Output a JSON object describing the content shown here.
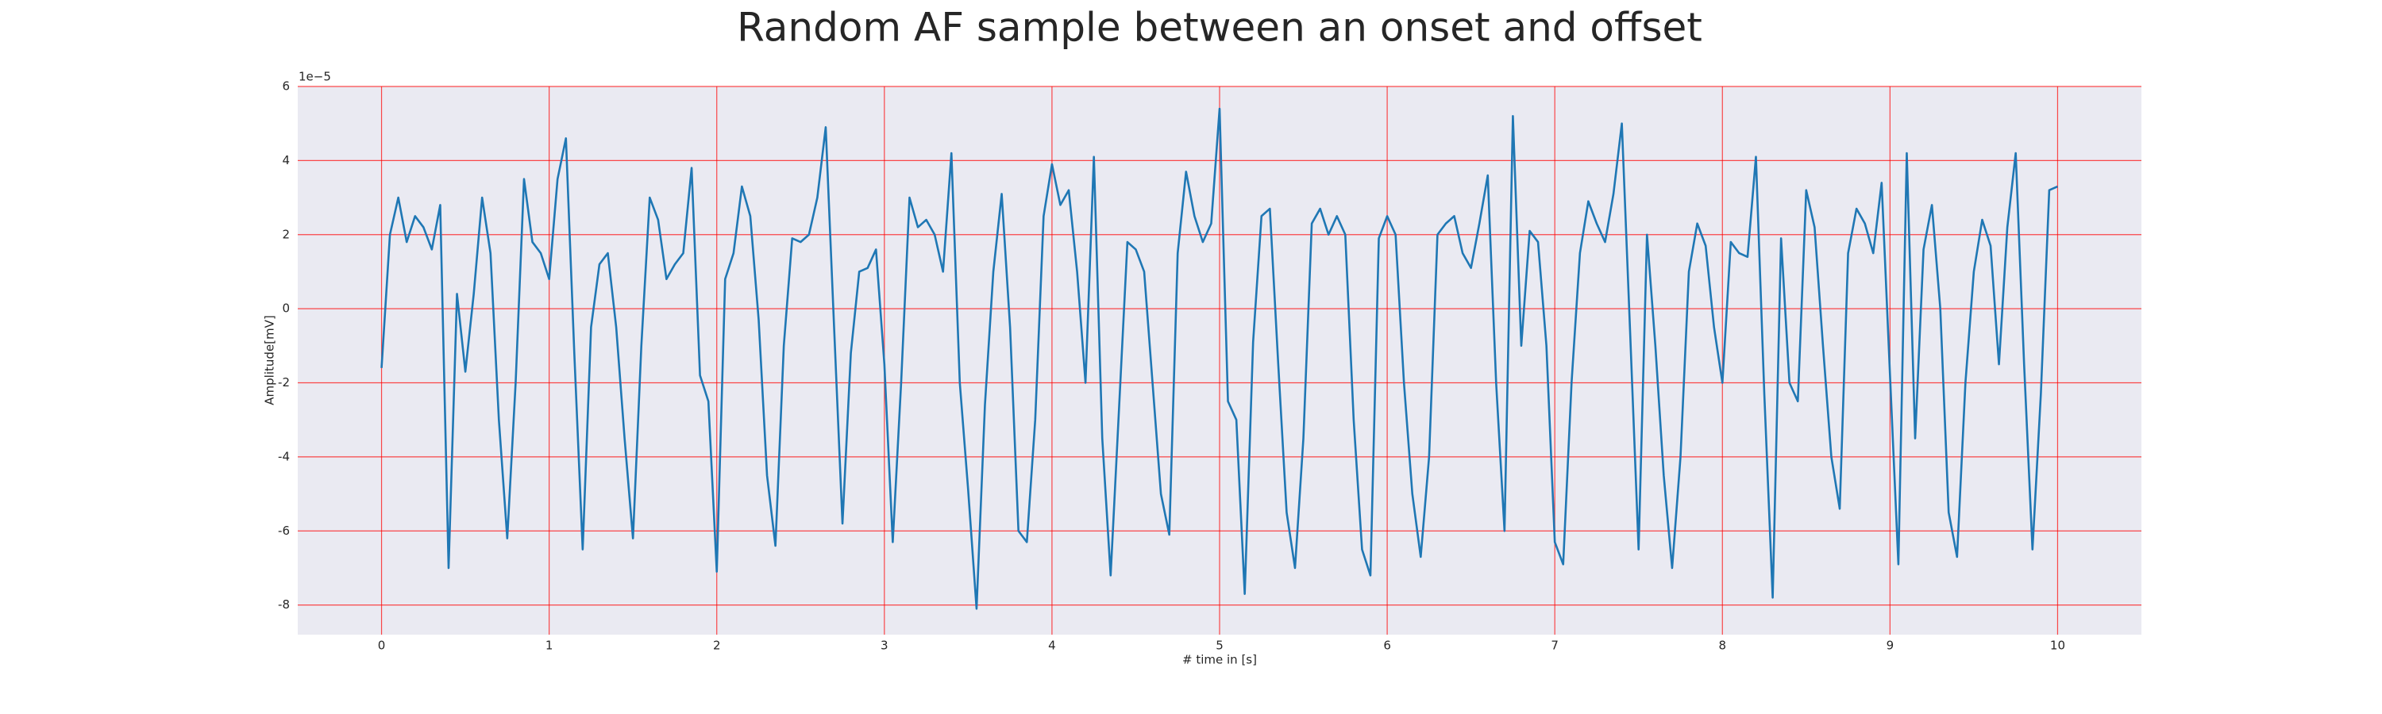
{
  "chart_data": {
    "type": "line",
    "title": "Random AF sample between an onset and offset",
    "xlabel": "# time in [s]",
    "ylabel": "Amplitude[mV]",
    "y_offset_label": "1e−5",
    "xlim": [
      -0.5,
      10.5
    ],
    "ylim": [
      -8.8,
      6
    ],
    "xticks": [
      0,
      1,
      2,
      3,
      4,
      5,
      6,
      7,
      8,
      9,
      10
    ],
    "yticks": [
      -8,
      -6,
      -4,
      -2,
      0,
      2,
      4,
      6
    ],
    "grid": true,
    "grid_color": "#ff0000",
    "background": "#eaeaf2",
    "x": [
      0,
      0.05,
      0.1,
      0.15,
      0.2,
      0.25,
      0.3,
      0.35,
      0.4,
      0.45,
      0.5,
      0.55,
      0.6,
      0.65,
      0.7,
      0.75,
      0.8,
      0.85,
      0.9,
      0.95,
      1,
      1.05,
      1.1,
      1.15,
      1.2,
      1.25,
      1.3,
      1.35,
      1.4,
      1.45,
      1.5,
      1.55,
      1.6,
      1.65,
      1.7,
      1.75,
      1.8,
      1.85,
      1.9,
      1.95,
      2,
      2.05,
      2.1,
      2.15,
      2.2,
      2.25,
      2.3,
      2.35,
      2.4,
      2.45,
      2.5,
      2.55,
      2.6,
      2.65,
      2.7,
      2.75,
      2.8,
      2.85,
      2.9,
      2.95,
      3,
      3.05,
      3.1,
      3.15,
      3.2,
      3.25,
      3.3,
      3.35,
      3.4,
      3.45,
      3.5,
      3.55,
      3.6,
      3.65,
      3.7,
      3.75,
      3.8,
      3.85,
      3.9,
      3.95,
      4,
      4.05,
      4.1,
      4.15,
      4.2,
      4.25,
      4.3,
      4.35,
      4.4,
      4.45,
      4.5,
      4.55,
      4.6,
      4.65,
      4.7,
      4.75,
      4.8,
      4.85,
      4.9,
      4.95,
      5,
      5.05,
      5.1,
      5.15,
      5.2,
      5.25,
      5.3,
      5.35,
      5.4,
      5.45,
      5.5,
      5.55,
      5.6,
      5.65,
      5.7,
      5.75,
      5.8,
      5.85,
      5.9,
      5.95,
      6,
      6.05,
      6.1,
      6.15,
      6.2,
      6.25,
      6.3,
      6.35,
      6.4,
      6.45,
      6.5,
      6.55,
      6.6,
      6.65,
      6.7,
      6.75,
      6.8,
      6.85,
      6.9,
      6.95,
      7,
      7.05,
      7.1,
      7.15,
      7.2,
      7.25,
      7.3,
      7.35,
      7.4,
      7.45,
      7.5,
      7.55,
      7.6,
      7.65,
      7.7,
      7.75,
      7.8,
      7.85,
      7.9,
      7.95,
      8,
      8.05,
      8.1,
      8.15,
      8.2,
      8.25,
      8.3,
      8.35,
      8.4,
      8.45,
      8.5,
      8.55,
      8.6,
      8.65,
      8.7,
      8.75,
      8.8,
      8.85,
      8.9,
      8.95,
      9,
      9.05,
      9.1,
      9.15,
      9.2,
      9.25,
      9.3,
      9.35,
      9.4,
      9.45,
      9.5,
      9.55,
      9.6,
      9.65,
      9.7,
      9.75,
      9.8,
      9.85,
      9.9,
      9.95,
      10
    ],
    "series": [
      {
        "color": "#1f77b4",
        "values": [
          -1.6,
          2.0,
          3.0,
          1.8,
          2.5,
          2.2,
          1.6,
          2.8,
          -7.0,
          0.4,
          -1.7,
          0.4,
          3.0,
          1.5,
          -3.0,
          -6.2,
          -2.0,
          3.5,
          1.8,
          1.5,
          0.8,
          3.5,
          4.6,
          -1.2,
          -6.5,
          -0.5,
          1.2,
          1.5,
          -0.5,
          -3.5,
          -6.2,
          -1.0,
          3.0,
          2.4,
          0.8,
          1.2,
          1.5,
          3.8,
          -1.8,
          -2.5,
          -7.1,
          0.8,
          1.5,
          3.3,
          2.5,
          -0.3,
          -4.5,
          -6.4,
          -1.0,
          1.9,
          1.8,
          2.0,
          3.0,
          4.9,
          -0.5,
          -5.8,
          -1.2,
          1.0,
          1.1,
          1.6,
          -1.5,
          -6.3,
          -2.0,
          3.0,
          2.2,
          2.4,
          2.0,
          1.0,
          4.2,
          -2.0,
          -4.9,
          -8.1,
          -2.6,
          1.0,
          3.1,
          -0.5,
          -6.0,
          -6.3,
          -3.0,
          2.5,
          3.9,
          2.8,
          3.2,
          1.0,
          -2.0,
          4.1,
          -3.5,
          -7.2,
          -2.7,
          1.8,
          1.6,
          1.0,
          -2.0,
          -5.0,
          -6.1,
          1.5,
          3.7,
          2.5,
          1.8,
          2.3,
          5.4,
          -2.5,
          -3.0,
          -7.7,
          -0.9,
          2.5,
          2.7,
          -1.5,
          -5.5,
          -7.0,
          -3.5,
          2.3,
          2.7,
          2.0,
          2.5,
          2.0,
          -3.0,
          -6.5,
          -7.2,
          1.9,
          2.5,
          2.0,
          -2.0,
          -5.0,
          -6.7,
          -4.0,
          2.0,
          2.3,
          2.5,
          1.5,
          1.1,
          2.3,
          3.6,
          -2.0,
          -6.0,
          5.2,
          -1.0,
          2.1,
          1.8,
          -1.0,
          -6.3,
          -6.9,
          -2.0,
          1.5,
          2.9,
          2.3,
          1.8,
          3.1,
          5.0,
          -0.7,
          -6.5,
          2.0,
          -1.0,
          -4.5,
          -7.0,
          -4.0,
          1.0,
          2.3,
          1.7,
          -0.5,
          -2.0,
          1.8,
          1.5,
          1.4,
          4.1,
          -2.3,
          -7.8,
          1.9,
          -2.0,
          -2.5,
          3.2,
          2.2,
          -1.0,
          -4.0,
          -5.4,
          1.5,
          2.7,
          2.3,
          1.5,
          3.4,
          -1.8,
          -6.9,
          4.2,
          -3.5,
          1.6,
          2.8,
          0.0,
          -5.5,
          -6.7,
          -2.0,
          1.0,
          2.4,
          1.7,
          -1.5,
          2.2,
          4.2,
          -1.5,
          -6.5,
          -2.3,
          3.2,
          3.3
        ]
      }
    ]
  }
}
